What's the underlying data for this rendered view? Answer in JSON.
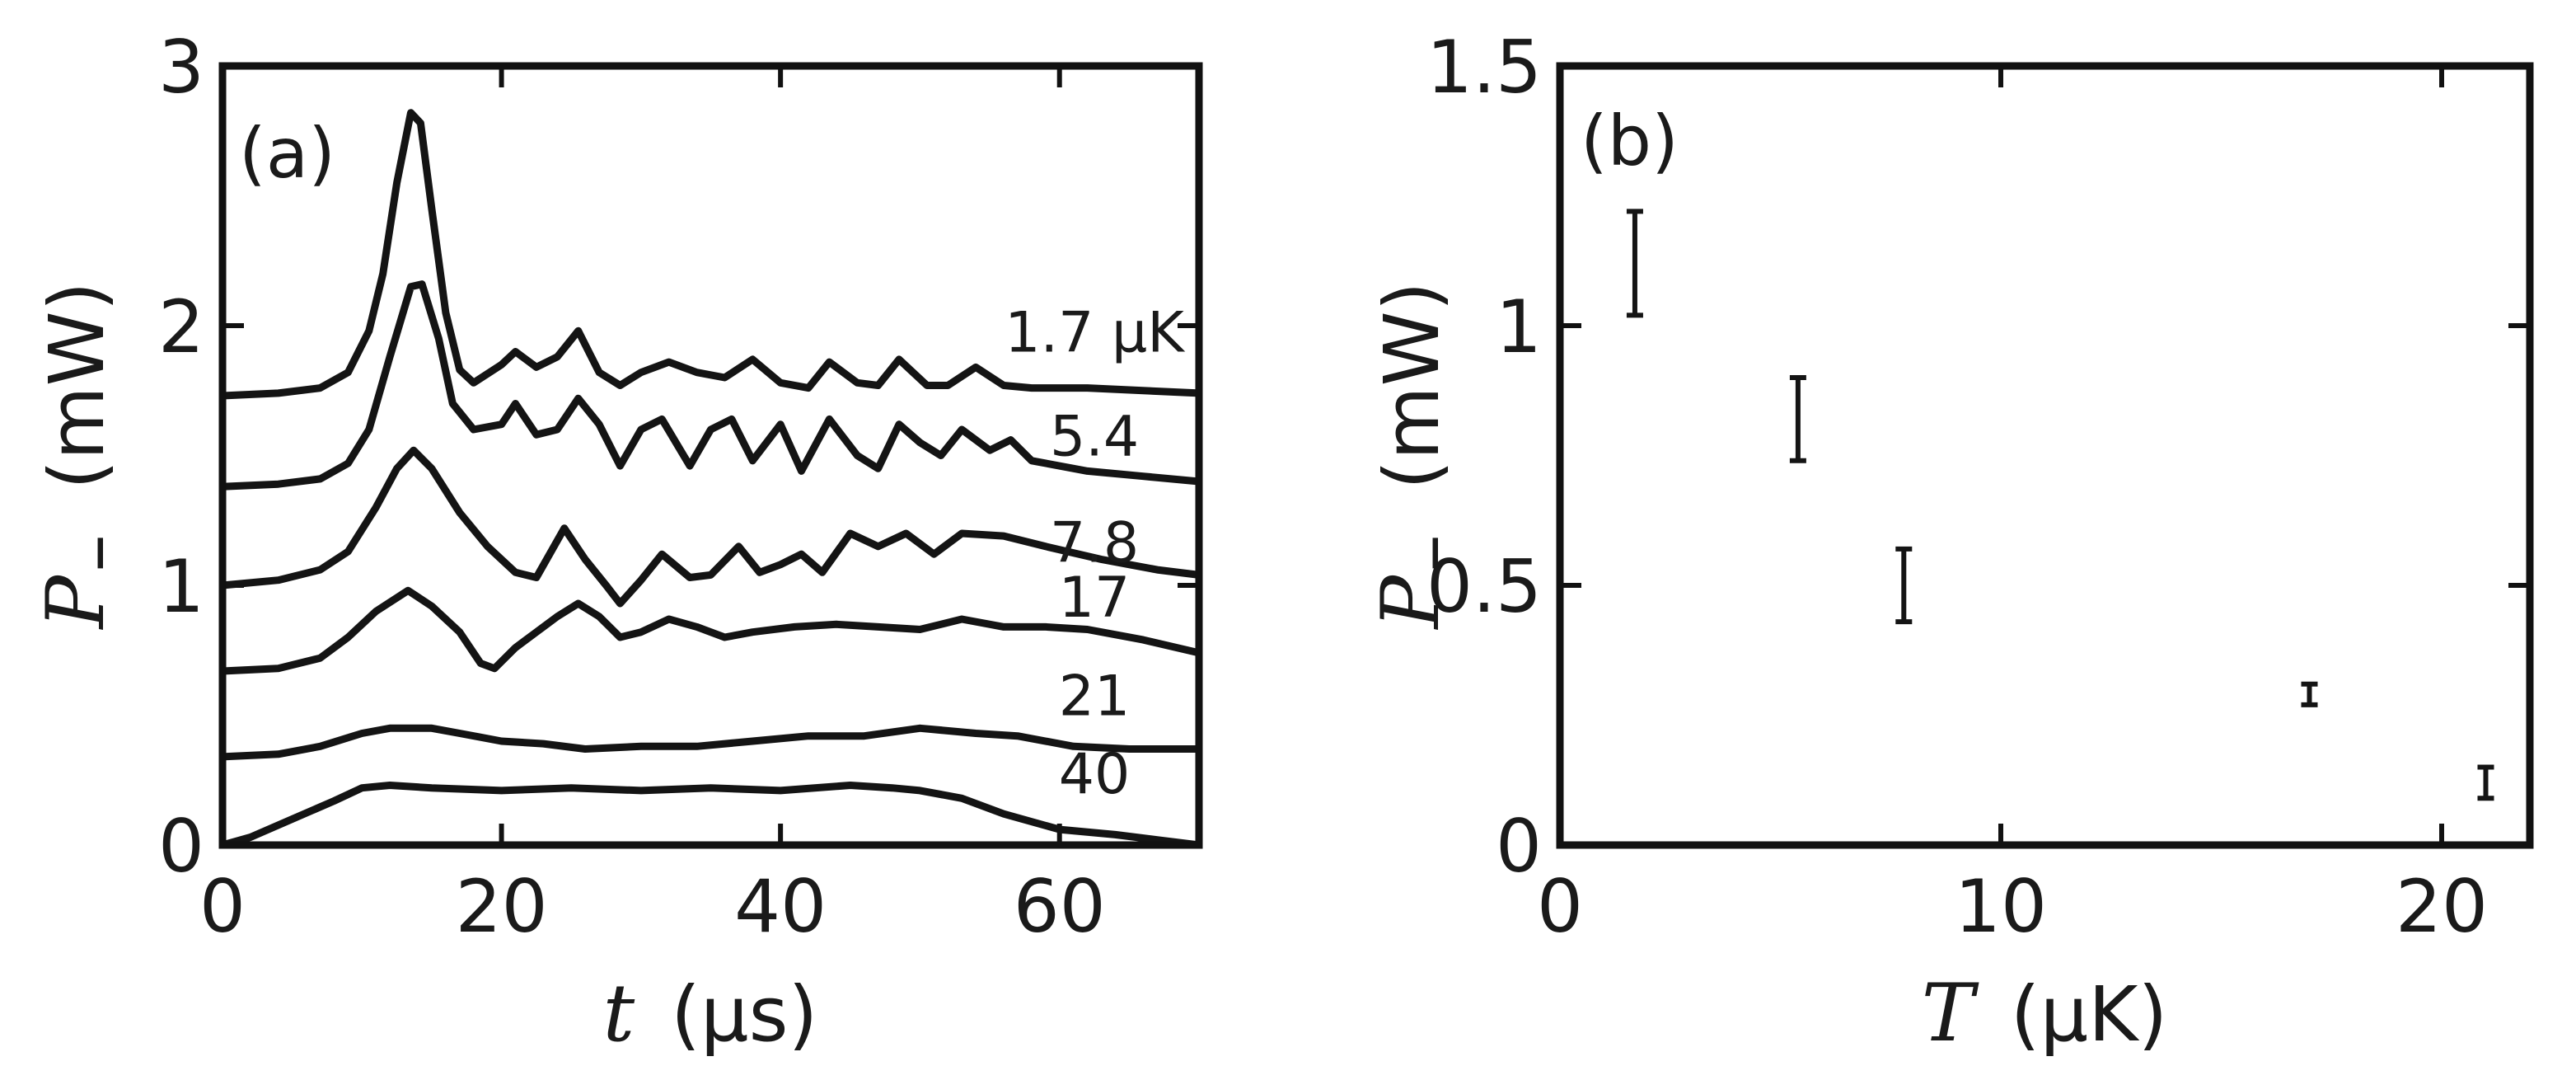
{
  "chart_data": [
    {
      "panel_label": "(a)",
      "type": "line",
      "xlabel_var": "t",
      "xlabel_unit": "(μs)",
      "ylabel_var": "P",
      "ylabel_sub": "–",
      "ylabel_unit": "(mW)",
      "xlim": [
        0,
        70
      ],
      "ylim": [
        0,
        3
      ],
      "x_ticks": [
        0,
        20,
        40,
        60
      ],
      "y_ticks": [
        0,
        1,
        2,
        3
      ],
      "x_tick_labels": [
        "0",
        "20",
        "40",
        "60"
      ],
      "y_tick_labels": [
        "0",
        "1",
        "2",
        "3"
      ],
      "series": [
        {
          "name": "1.7 μK",
          "label_pos": [
            62.5,
            1.9
          ],
          "points": [
            [
              0,
              1.73
            ],
            [
              4,
              1.74
            ],
            [
              7,
              1.76
            ],
            [
              9,
              1.82
            ],
            [
              10.5,
              1.98
            ],
            [
              11.5,
              2.2
            ],
            [
              12.5,
              2.55
            ],
            [
              13.5,
              2.82
            ],
            [
              14.2,
              2.78
            ],
            [
              15,
              2.45
            ],
            [
              16,
              2.05
            ],
            [
              17,
              1.83
            ],
            [
              18,
              1.78
            ],
            [
              20,
              1.85
            ],
            [
              21,
              1.9
            ],
            [
              22.5,
              1.84
            ],
            [
              24,
              1.88
            ],
            [
              25.5,
              1.98
            ],
            [
              27,
              1.82
            ],
            [
              28.5,
              1.77
            ],
            [
              30,
              1.82
            ],
            [
              32,
              1.86
            ],
            [
              34,
              1.82
            ],
            [
              36,
              1.8
            ],
            [
              38,
              1.87
            ],
            [
              40,
              1.78
            ],
            [
              42,
              1.76
            ],
            [
              43.5,
              1.86
            ],
            [
              45.5,
              1.78
            ],
            [
              47,
              1.77
            ],
            [
              48.5,
              1.87
            ],
            [
              50.5,
              1.77
            ],
            [
              52,
              1.77
            ],
            [
              54,
              1.84
            ],
            [
              56,
              1.77
            ],
            [
              58,
              1.76
            ],
            [
              62,
              1.76
            ],
            [
              70,
              1.74
            ]
          ]
        },
        {
          "name": "5.4",
          "label_pos": [
            62.5,
            1.5
          ],
          "points": [
            [
              0,
              1.38
            ],
            [
              4,
              1.39
            ],
            [
              7,
              1.41
            ],
            [
              9,
              1.47
            ],
            [
              10.5,
              1.6
            ],
            [
              12,
              1.88
            ],
            [
              13.5,
              2.15
            ],
            [
              14.3,
              2.16
            ],
            [
              15.5,
              1.95
            ],
            [
              16.5,
              1.7
            ],
            [
              18,
              1.6
            ],
            [
              20,
              1.62
            ],
            [
              21,
              1.7
            ],
            [
              22.5,
              1.58
            ],
            [
              24,
              1.6
            ],
            [
              25.5,
              1.72
            ],
            [
              27,
              1.62
            ],
            [
              28.5,
              1.46
            ],
            [
              30,
              1.6
            ],
            [
              31.5,
              1.64
            ],
            [
              33.5,
              1.46
            ],
            [
              35,
              1.6
            ],
            [
              36.5,
              1.64
            ],
            [
              38,
              1.48
            ],
            [
              40,
              1.62
            ],
            [
              41.5,
              1.44
            ],
            [
              43.5,
              1.64
            ],
            [
              45.5,
              1.5
            ],
            [
              47,
              1.45
            ],
            [
              48.5,
              1.62
            ],
            [
              50,
              1.55
            ],
            [
              51.5,
              1.5
            ],
            [
              53,
              1.6
            ],
            [
              55,
              1.52
            ],
            [
              56.5,
              1.56
            ],
            [
              58,
              1.48
            ],
            [
              62,
              1.44
            ],
            [
              66,
              1.42
            ],
            [
              70,
              1.4
            ]
          ]
        },
        {
          "name": "7.8",
          "label_pos": [
            62.5,
            1.09
          ],
          "points": [
            [
              0,
              1.0
            ],
            [
              4,
              1.02
            ],
            [
              7,
              1.06
            ],
            [
              9,
              1.13
            ],
            [
              11,
              1.3
            ],
            [
              12.5,
              1.45
            ],
            [
              13.7,
              1.52
            ],
            [
              15,
              1.45
            ],
            [
              17,
              1.28
            ],
            [
              19,
              1.15
            ],
            [
              21,
              1.05
            ],
            [
              22.5,
              1.03
            ],
            [
              24.5,
              1.22
            ],
            [
              26,
              1.1
            ],
            [
              27.5,
              1.0
            ],
            [
              28.5,
              0.93
            ],
            [
              30,
              1.02
            ],
            [
              31.5,
              1.12
            ],
            [
              33.5,
              1.03
            ],
            [
              35,
              1.04
            ],
            [
              37,
              1.15
            ],
            [
              38.5,
              1.05
            ],
            [
              40,
              1.08
            ],
            [
              41.5,
              1.12
            ],
            [
              43,
              1.05
            ],
            [
              45,
              1.2
            ],
            [
              47,
              1.15
            ],
            [
              49,
              1.2
            ],
            [
              51,
              1.12
            ],
            [
              53,
              1.2
            ],
            [
              56,
              1.19
            ],
            [
              59,
              1.15
            ],
            [
              63,
              1.1
            ],
            [
              67,
              1.06
            ],
            [
              70,
              1.04
            ]
          ]
        },
        {
          "name": "17",
          "label_pos": [
            62.5,
            0.88
          ],
          "points": [
            [
              0,
              0.67
            ],
            [
              4,
              0.68
            ],
            [
              7,
              0.72
            ],
            [
              9,
              0.8
            ],
            [
              11,
              0.9
            ],
            [
              13.3,
              0.98
            ],
            [
              15,
              0.92
            ],
            [
              17,
              0.82
            ],
            [
              18.5,
              0.7
            ],
            [
              19.5,
              0.68
            ],
            [
              21,
              0.76
            ],
            [
              22.5,
              0.82
            ],
            [
              24,
              0.88
            ],
            [
              25.5,
              0.93
            ],
            [
              27,
              0.88
            ],
            [
              28.5,
              0.8
            ],
            [
              30,
              0.82
            ],
            [
              32,
              0.87
            ],
            [
              34,
              0.84
            ],
            [
              36,
              0.8
            ],
            [
              38,
              0.82
            ],
            [
              41,
              0.84
            ],
            [
              44,
              0.85
            ],
            [
              47,
              0.84
            ],
            [
              50,
              0.83
            ],
            [
              53,
              0.87
            ],
            [
              56,
              0.84
            ],
            [
              59,
              0.84
            ],
            [
              62,
              0.83
            ],
            [
              66,
              0.79
            ],
            [
              70,
              0.74
            ]
          ]
        },
        {
          "name": "21",
          "label_pos": [
            62.5,
            0.5
          ],
          "points": [
            [
              0,
              0.34
            ],
            [
              4,
              0.35
            ],
            [
              7,
              0.38
            ],
            [
              10,
              0.43
            ],
            [
              12,
              0.45
            ],
            [
              15,
              0.45
            ],
            [
              17,
              0.43
            ],
            [
              20,
              0.4
            ],
            [
              23,
              0.39
            ],
            [
              26,
              0.37
            ],
            [
              30,
              0.38
            ],
            [
              34,
              0.38
            ],
            [
              38,
              0.4
            ],
            [
              42,
              0.42
            ],
            [
              46,
              0.42
            ],
            [
              50,
              0.45
            ],
            [
              54,
              0.43
            ],
            [
              57,
              0.42
            ],
            [
              61,
              0.38
            ],
            [
              65,
              0.37
            ],
            [
              70,
              0.37
            ]
          ]
        },
        {
          "name": "40",
          "label_pos": [
            62.5,
            0.2
          ],
          "points": [
            [
              0,
              0.0
            ],
            [
              2,
              0.03
            ],
            [
              5,
              0.1
            ],
            [
              8,
              0.17
            ],
            [
              10,
              0.22
            ],
            [
              12,
              0.23
            ],
            [
              15,
              0.22
            ],
            [
              20,
              0.21
            ],
            [
              25,
              0.22
            ],
            [
              30,
              0.21
            ],
            [
              35,
              0.22
            ],
            [
              40,
              0.21
            ],
            [
              45,
              0.23
            ],
            [
              48,
              0.22
            ],
            [
              50,
              0.21
            ],
            [
              53,
              0.18
            ],
            [
              56,
              0.12
            ],
            [
              60,
              0.06
            ],
            [
              64,
              0.04
            ],
            [
              67,
              0.02
            ],
            [
              70,
              0.0
            ]
          ]
        }
      ]
    },
    {
      "panel_label": "(b)",
      "type": "scatter",
      "xlabel_var": "T",
      "xlabel_unit": "(μK)",
      "ylabel_var": "P",
      "ylabel_sub": "–",
      "ylabel_unit": "(mW)",
      "xlim": [
        0,
        22
      ],
      "ylim": [
        0,
        1.5
      ],
      "x_ticks": [
        0,
        10,
        20
      ],
      "y_ticks": [
        0,
        0.5,
        1,
        1.5
      ],
      "x_tick_labels": [
        "0",
        "10",
        "20"
      ],
      "y_tick_labels": [
        "0",
        "0.5",
        "1",
        "1.5"
      ],
      "points": [
        {
          "x": 1.7,
          "y": 1.12,
          "err": 0.1
        },
        {
          "x": 5.4,
          "y": 0.82,
          "err": 0.08
        },
        {
          "x": 7.8,
          "y": 0.5,
          "err": 0.07
        },
        {
          "x": 17,
          "y": 0.29,
          "err": 0.02
        },
        {
          "x": 21,
          "y": 0.12,
          "err": 0.03
        }
      ]
    }
  ]
}
